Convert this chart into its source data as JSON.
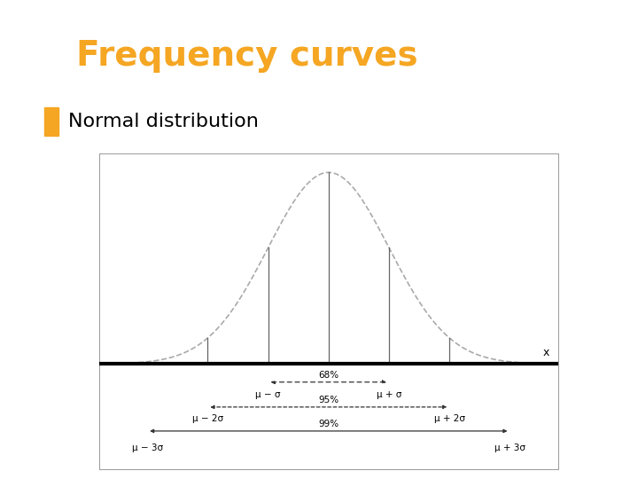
{
  "title": "Frequency curves",
  "title_color": "#F5A623",
  "title_bg": "#000000",
  "bullet_color": "#F5A623",
  "bullet_text": "Normal distribution",
  "bg_color": "#ffffff",
  "mu": 0,
  "sigma": 1,
  "x_range": [
    -3.8,
    3.8
  ],
  "vertical_lines": [
    -3,
    -2,
    -1,
    0,
    1,
    2,
    3
  ],
  "x_label": "x",
  "curve_color": "#aaaaaa",
  "line_color": "#666666",
  "arrow_color": "#333333",
  "axis_linewidth": 3.0,
  "title_fontsize": 28,
  "bullet_fontsize": 16,
  "sigma_labels": [
    {
      "text": "μ − 3σ",
      "x": -3
    },
    {
      "text": "μ − 2σ",
      "x": -2
    },
    {
      "text": "μ − σ",
      "x": -1
    },
    {
      "text": "μ + σ",
      "x": 1
    },
    {
      "text": "μ + 2σ",
      "x": 2
    },
    {
      "text": "μ + 3σ",
      "x": 3
    }
  ]
}
